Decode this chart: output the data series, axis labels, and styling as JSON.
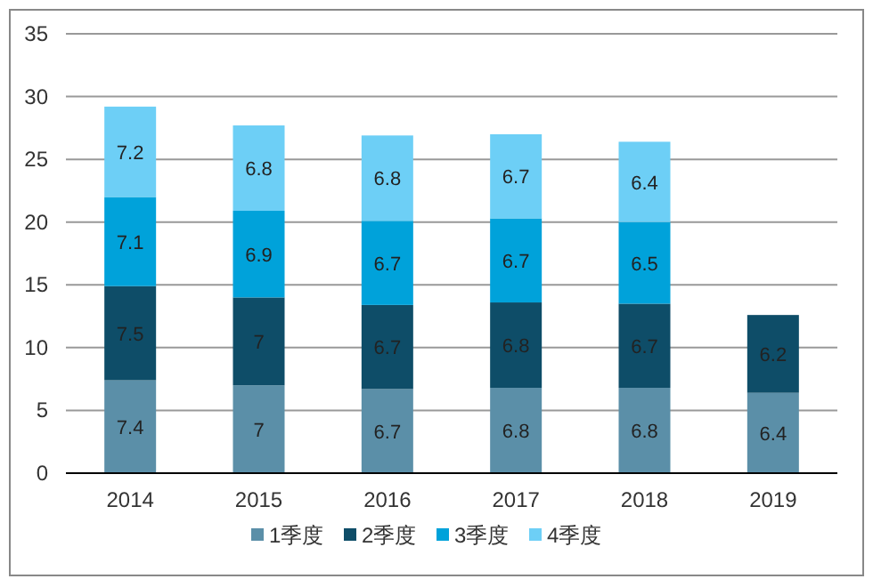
{
  "chart_data": {
    "type": "bar",
    "stacked": true,
    "categories": [
      "2014",
      "2015",
      "2016",
      "2017",
      "2018",
      "2019"
    ],
    "series": [
      {
        "name": "1季度",
        "color": "#5b8fa8",
        "values": [
          7.4,
          7,
          6.7,
          6.8,
          6.8,
          6.4
        ]
      },
      {
        "name": "2季度",
        "color": "#0e4d68",
        "values": [
          7.5,
          7,
          6.7,
          6.8,
          6.7,
          6.2
        ]
      },
      {
        "name": "3季度",
        "color": "#00a2da",
        "values": [
          7.1,
          6.9,
          6.7,
          6.7,
          6.5,
          null
        ]
      },
      {
        "name": "4季度",
        "color": "#6dcff6",
        "values": [
          7.2,
          6.8,
          6.8,
          6.7,
          6.4,
          null
        ]
      }
    ],
    "ylim": [
      0,
      35
    ],
    "yticks": [
      0,
      5,
      10,
      15,
      20,
      25,
      30,
      35
    ],
    "grid": "y",
    "legend": "bottom",
    "data_labels": true
  }
}
